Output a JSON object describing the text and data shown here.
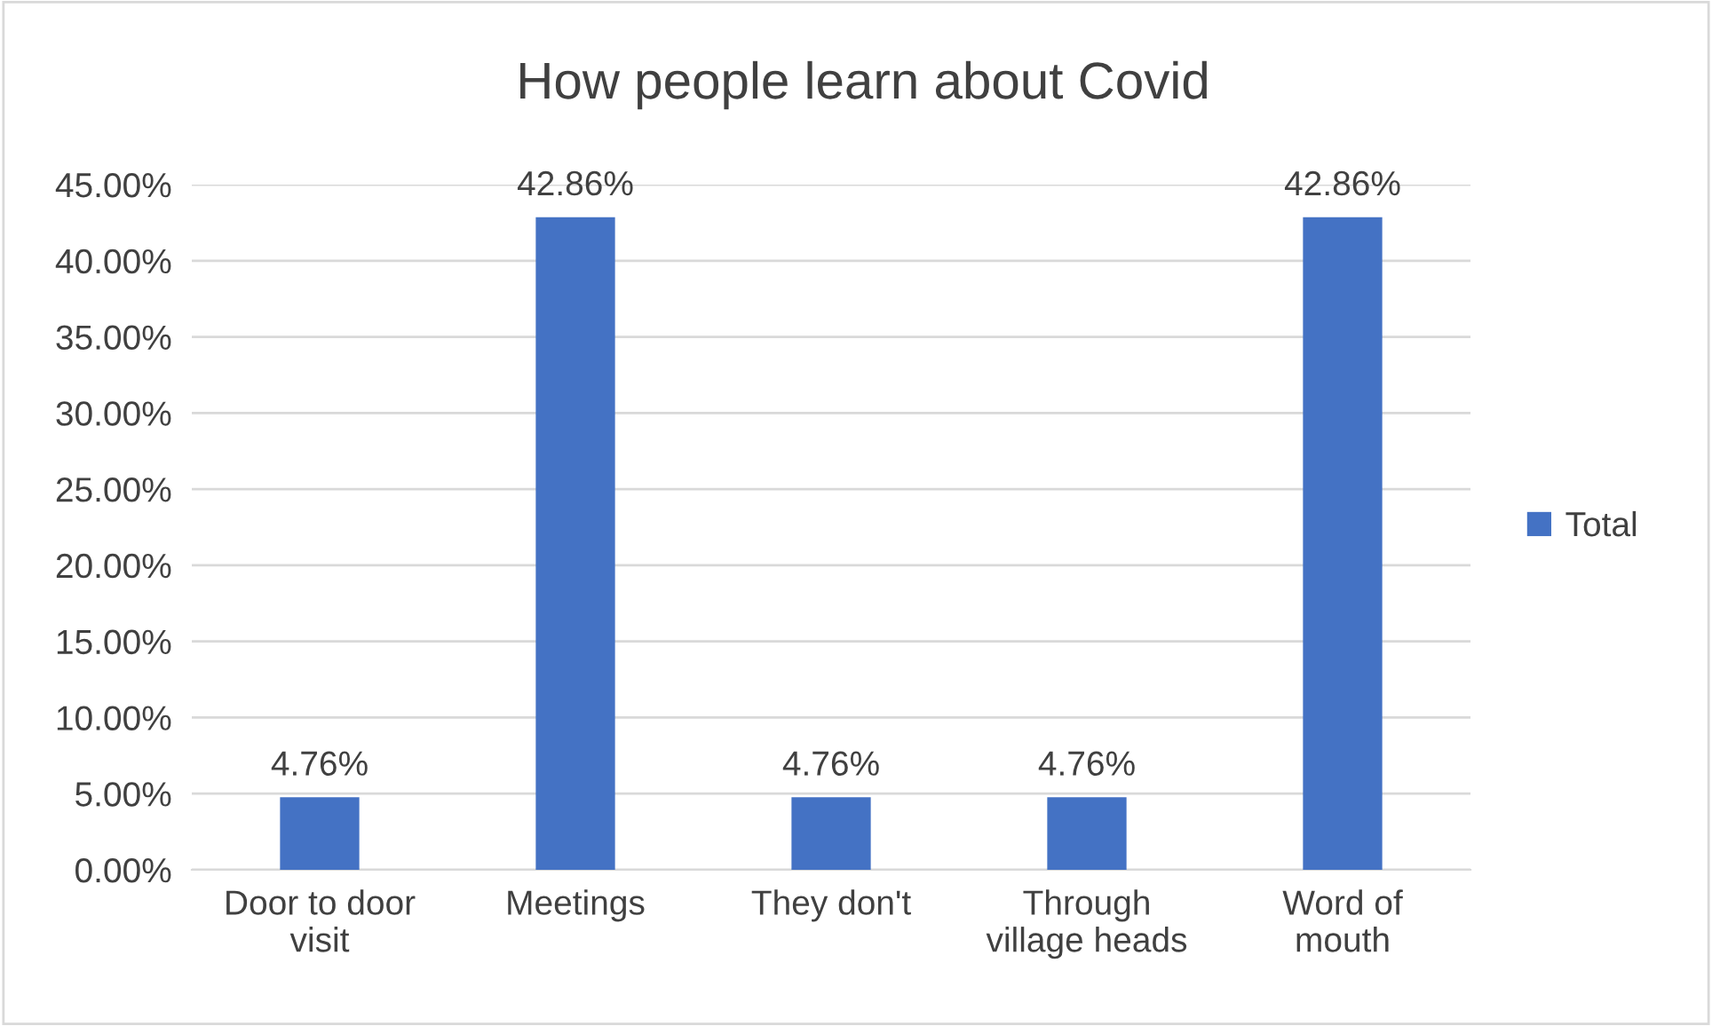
{
  "chart_data": {
    "type": "bar",
    "title": "How people learn about Covid",
    "categories": [
      "Door to door\nvisit",
      "Meetings",
      "They don't",
      "Through\nvillage heads",
      "Word of\nmouth"
    ],
    "series": [
      {
        "name": "Total",
        "color": "#4472c4",
        "values": [
          4.76,
          42.86,
          4.76,
          4.76,
          42.86
        ],
        "value_labels": [
          "4.76%",
          "42.86%",
          "4.76%",
          "4.76%",
          "42.86%"
        ]
      }
    ],
    "ylim": [
      0,
      45
    ],
    "yticks": [
      {
        "value": 0,
        "label": "0.00%"
      },
      {
        "value": 5,
        "label": "5.00%"
      },
      {
        "value": 10,
        "label": "10.00%"
      },
      {
        "value": 15,
        "label": "15.00%"
      },
      {
        "value": 20,
        "label": "20.00%"
      },
      {
        "value": 25,
        "label": "25.00%"
      },
      {
        "value": 30,
        "label": "30.00%"
      },
      {
        "value": 35,
        "label": "35.00%"
      },
      {
        "value": 40,
        "label": "40.00%"
      },
      {
        "value": 45,
        "label": "45.00%"
      }
    ],
    "grid": "y",
    "legend": "right"
  }
}
